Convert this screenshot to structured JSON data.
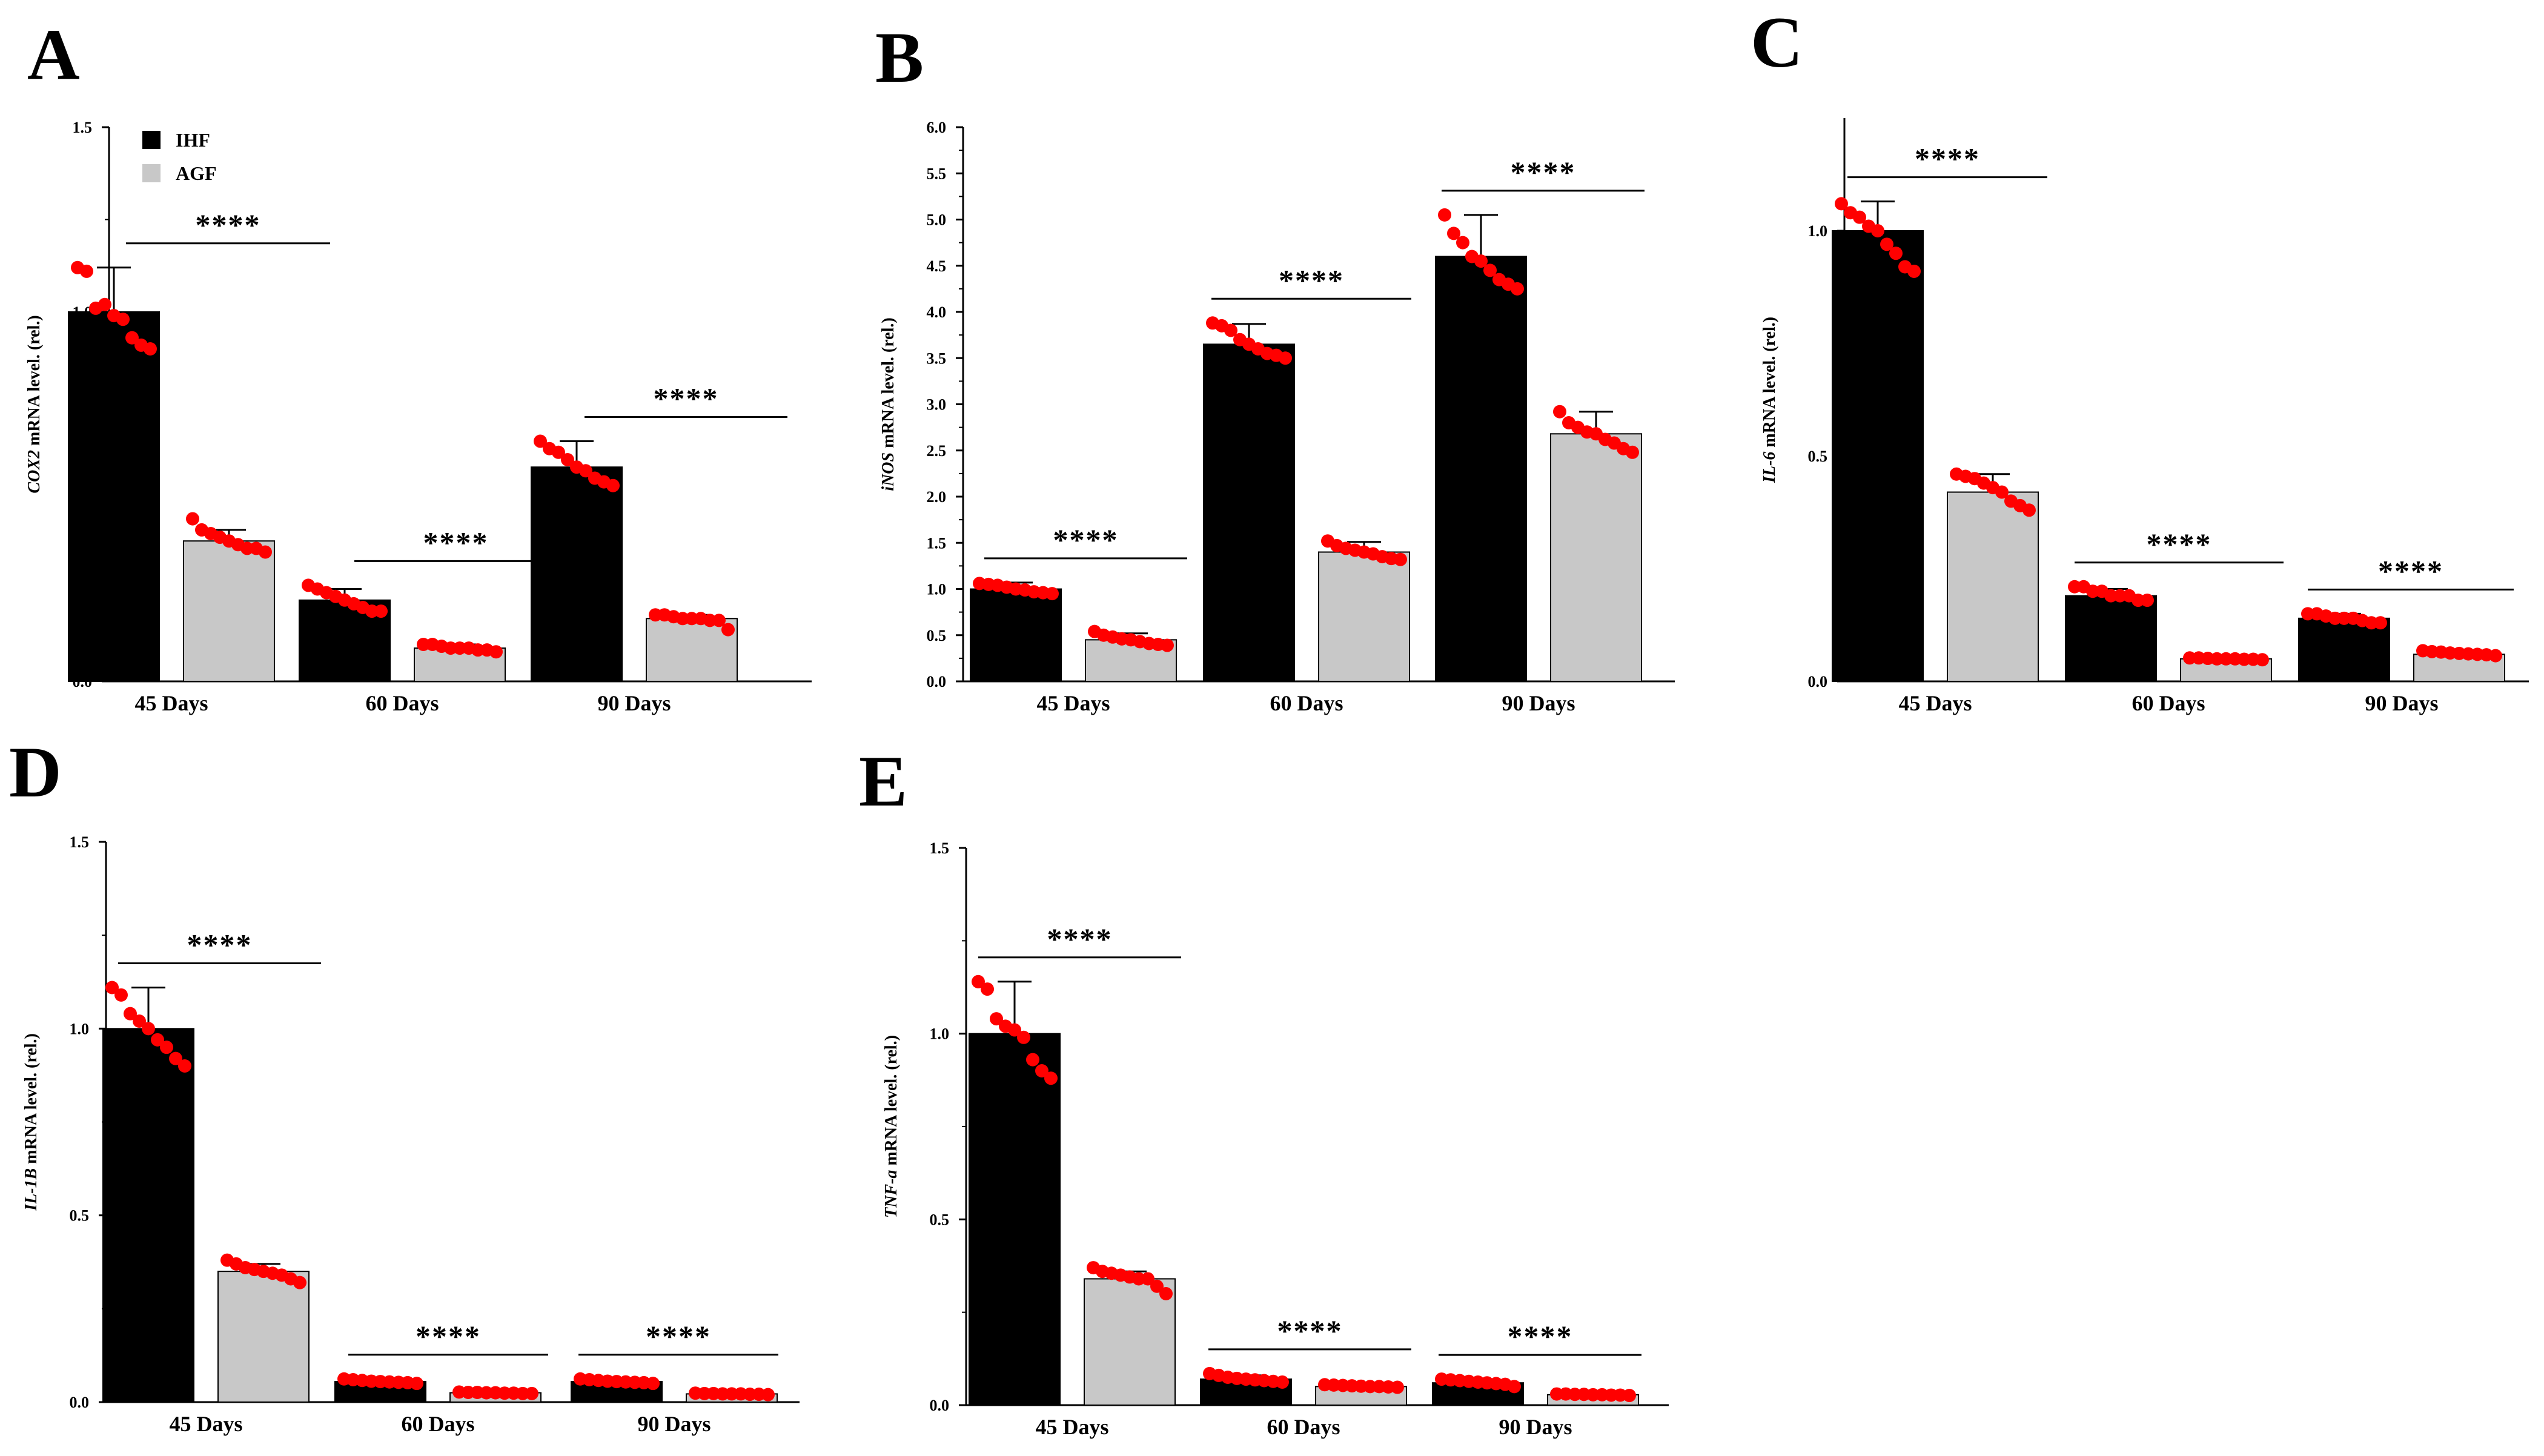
{
  "colors": {
    "ihf": "#000000",
    "agf": "#c8c8c8",
    "point": "#ff0000",
    "axis": "#000000"
  },
  "chart_data": [
    {
      "type": "bar",
      "panel": "A",
      "ylabel_gene": "COX2",
      "ylabel_rest": " mRNA level. (rel.)",
      "ylim": [
        0,
        1.5
      ],
      "yticks": [
        "0.0",
        "0.5",
        "1.0",
        "1.5"
      ],
      "categories": [
        "45 Days",
        "60 Days",
        "90 Days"
      ],
      "legend": [
        {
          "name": "IHF"
        },
        {
          "name": "AGF"
        }
      ],
      "series": [
        {
          "name": "IHF",
          "values": [
            1.0,
            0.22,
            0.58
          ],
          "sd": [
            0.12,
            0.03,
            0.07
          ],
          "points": [
            [
              1.12,
              1.11,
              1.01,
              1.02,
              0.99,
              0.98,
              0.93,
              0.91,
              0.9
            ],
            [
              0.26,
              0.25,
              0.24,
              0.23,
              0.22,
              0.21,
              0.2,
              0.19,
              0.19
            ],
            [
              0.65,
              0.63,
              0.62,
              0.6,
              0.58,
              0.57,
              0.55,
              0.54,
              0.53
            ]
          ]
        },
        {
          "name": "AGF",
          "values": [
            0.38,
            0.09,
            0.17
          ],
          "sd": [
            0.03,
            0.01,
            0.01
          ],
          "points": [
            [
              0.44,
              0.41,
              0.4,
              0.39,
              0.38,
              0.37,
              0.36,
              0.36,
              0.35
            ],
            [
              0.1,
              0.1,
              0.095,
              0.09,
              0.09,
              0.09,
              0.085,
              0.085,
              0.08
            ],
            [
              0.18,
              0.18,
              0.175,
              0.17,
              0.17,
              0.17,
              0.165,
              0.165,
              0.14
            ]
          ]
        }
      ],
      "significance": [
        "****",
        "****",
        "****"
      ]
    },
    {
      "type": "bar",
      "panel": "B",
      "ylabel_gene": "iNOS",
      "ylabel_rest": " mRNA level. (rel.)",
      "ylim": [
        0,
        6.0
      ],
      "yticks": [
        "0.0",
        "0.5",
        "1.0",
        "1.5",
        "2.0",
        "2.5",
        "3.0",
        "3.5",
        "4.0",
        "4.5",
        "5.0",
        "5.5",
        "6.0"
      ],
      "categories": [
        "45 Days",
        "60 Days",
        "90 Days"
      ],
      "series": [
        {
          "name": "IHF",
          "values": [
            1.0,
            3.65,
            4.6
          ],
          "sd": [
            0.07,
            0.22,
            0.45
          ],
          "points": [
            [
              1.06,
              1.05,
              1.04,
              1.02,
              1.0,
              0.99,
              0.97,
              0.96,
              0.95
            ],
            [
              3.88,
              3.85,
              3.8,
              3.7,
              3.65,
              3.6,
              3.55,
              3.53,
              3.5
            ],
            [
              5.05,
              4.85,
              4.75,
              4.6,
              4.55,
              4.45,
              4.35,
              4.3,
              4.25
            ]
          ]
        },
        {
          "name": "AGF",
          "values": [
            0.45,
            1.4,
            2.68
          ],
          "sd": [
            0.07,
            0.11,
            0.24
          ],
          "points": [
            [
              0.54,
              0.5,
              0.48,
              0.46,
              0.45,
              0.43,
              0.41,
              0.4,
              0.39
            ],
            [
              1.52,
              1.47,
              1.44,
              1.42,
              1.4,
              1.38,
              1.35,
              1.33,
              1.32
            ],
            [
              2.92,
              2.8,
              2.75,
              2.7,
              2.68,
              2.62,
              2.58,
              2.52,
              2.48
            ]
          ]
        }
      ],
      "significance": [
        "****",
        "****",
        "****"
      ]
    },
    {
      "type": "bar",
      "panel": "C",
      "ylabel_gene": "IL-6",
      "ylabel_rest": " mRNA level. (rel.)",
      "ylim": [
        0,
        1.25
      ],
      "yticks": [
        "0.0",
        "0.5",
        "1.0"
      ],
      "categories": [
        "45 Days",
        "60 Days",
        "90 Days"
      ],
      "series": [
        {
          "name": "IHF",
          "values": [
            1.0,
            0.19,
            0.14
          ],
          "sd": [
            0.065,
            0.015,
            0.01
          ],
          "points": [
            [
              1.06,
              1.04,
              1.03,
              1.01,
              1.0,
              0.97,
              0.95,
              0.92,
              0.91
            ],
            [
              0.21,
              0.21,
              0.2,
              0.2,
              0.19,
              0.19,
              0.19,
              0.18,
              0.18
            ],
            [
              0.15,
              0.15,
              0.145,
              0.14,
              0.14,
              0.14,
              0.135,
              0.13,
              0.13
            ]
          ]
        },
        {
          "name": "AGF",
          "values": [
            0.42,
            0.05,
            0.06
          ],
          "sd": [
            0.04,
            0.004,
            0.005
          ],
          "points": [
            [
              0.46,
              0.455,
              0.45,
              0.44,
              0.43,
              0.42,
              0.4,
              0.39,
              0.38
            ],
            [
              0.052,
              0.052,
              0.051,
              0.05,
              0.05,
              0.05,
              0.049,
              0.049,
              0.048
            ],
            [
              0.068,
              0.066,
              0.065,
              0.063,
              0.062,
              0.061,
              0.06,
              0.059,
              0.057
            ]
          ]
        }
      ],
      "significance": [
        "****",
        "****",
        "****"
      ]
    },
    {
      "type": "bar",
      "panel": "D",
      "ylabel_gene": "IL-1B",
      "ylabel_rest": " mRNA level. (rel.)",
      "ylim": [
        0,
        1.5
      ],
      "yticks": [
        "0.0",
        "0.5",
        "1.0",
        "1.5"
      ],
      "categories": [
        "45 Days",
        "60 Days",
        "90 Days"
      ],
      "series": [
        {
          "name": "IHF",
          "values": [
            1.0,
            0.055,
            0.055
          ],
          "sd": [
            0.11,
            0.006,
            0.006
          ],
          "points": [
            [
              1.11,
              1.09,
              1.04,
              1.02,
              1.0,
              0.97,
              0.95,
              0.92,
              0.9
            ],
            [
              0.062,
              0.06,
              0.058,
              0.056,
              0.055,
              0.054,
              0.053,
              0.052,
              0.05
            ],
            [
              0.062,
              0.06,
              0.058,
              0.056,
              0.055,
              0.054,
              0.053,
              0.052,
              0.05
            ]
          ]
        },
        {
          "name": "AGF",
          "values": [
            0.35,
            0.025,
            0.022
          ],
          "sd": [
            0.02,
            0.003,
            0.002
          ],
          "points": [
            [
              0.38,
              0.37,
              0.36,
              0.355,
              0.35,
              0.345,
              0.34,
              0.33,
              0.32
            ],
            [
              0.027,
              0.026,
              0.026,
              0.025,
              0.025,
              0.024,
              0.024,
              0.023,
              0.023
            ],
            [
              0.024,
              0.023,
              0.023,
              0.022,
              0.022,
              0.022,
              0.021,
              0.021,
              0.02
            ]
          ]
        }
      ],
      "significance": [
        "****",
        "****",
        "****"
      ]
    },
    {
      "type": "bar",
      "panel": "E",
      "ylabel_gene": "TNF-a",
      "ylabel_rest": " mRNA level. (rel.)",
      "ylim": [
        0,
        1.5
      ],
      "yticks": [
        "0.0",
        "0.5",
        "1.0",
        "1.5"
      ],
      "categories": [
        "45 Days",
        "60 Days",
        "90 Days"
      ],
      "series": [
        {
          "name": "IHF",
          "values": [
            1.0,
            0.07,
            0.06
          ],
          "sd": [
            0.14,
            0.01,
            0.008
          ],
          "points": [
            [
              1.14,
              1.12,
              1.04,
              1.02,
              1.01,
              0.99,
              0.93,
              0.9,
              0.88
            ],
            [
              0.085,
              0.08,
              0.075,
              0.072,
              0.07,
              0.068,
              0.066,
              0.064,
              0.062
            ],
            [
              0.07,
              0.068,
              0.066,
              0.064,
              0.062,
              0.06,
              0.058,
              0.056,
              0.05
            ]
          ]
        },
        {
          "name": "AGF",
          "values": [
            0.34,
            0.05,
            0.028
          ],
          "sd": [
            0.02,
            0.004,
            0.003
          ],
          "points": [
            [
              0.37,
              0.36,
              0.355,
              0.35,
              0.345,
              0.34,
              0.34,
              0.32,
              0.3
            ],
            [
              0.055,
              0.054,
              0.053,
              0.052,
              0.051,
              0.05,
              0.05,
              0.049,
              0.048
            ],
            [
              0.03,
              0.03,
              0.029,
              0.029,
              0.028,
              0.028,
              0.027,
              0.027,
              0.026
            ]
          ]
        }
      ],
      "significance": [
        "****",
        "****",
        "****"
      ]
    }
  ]
}
